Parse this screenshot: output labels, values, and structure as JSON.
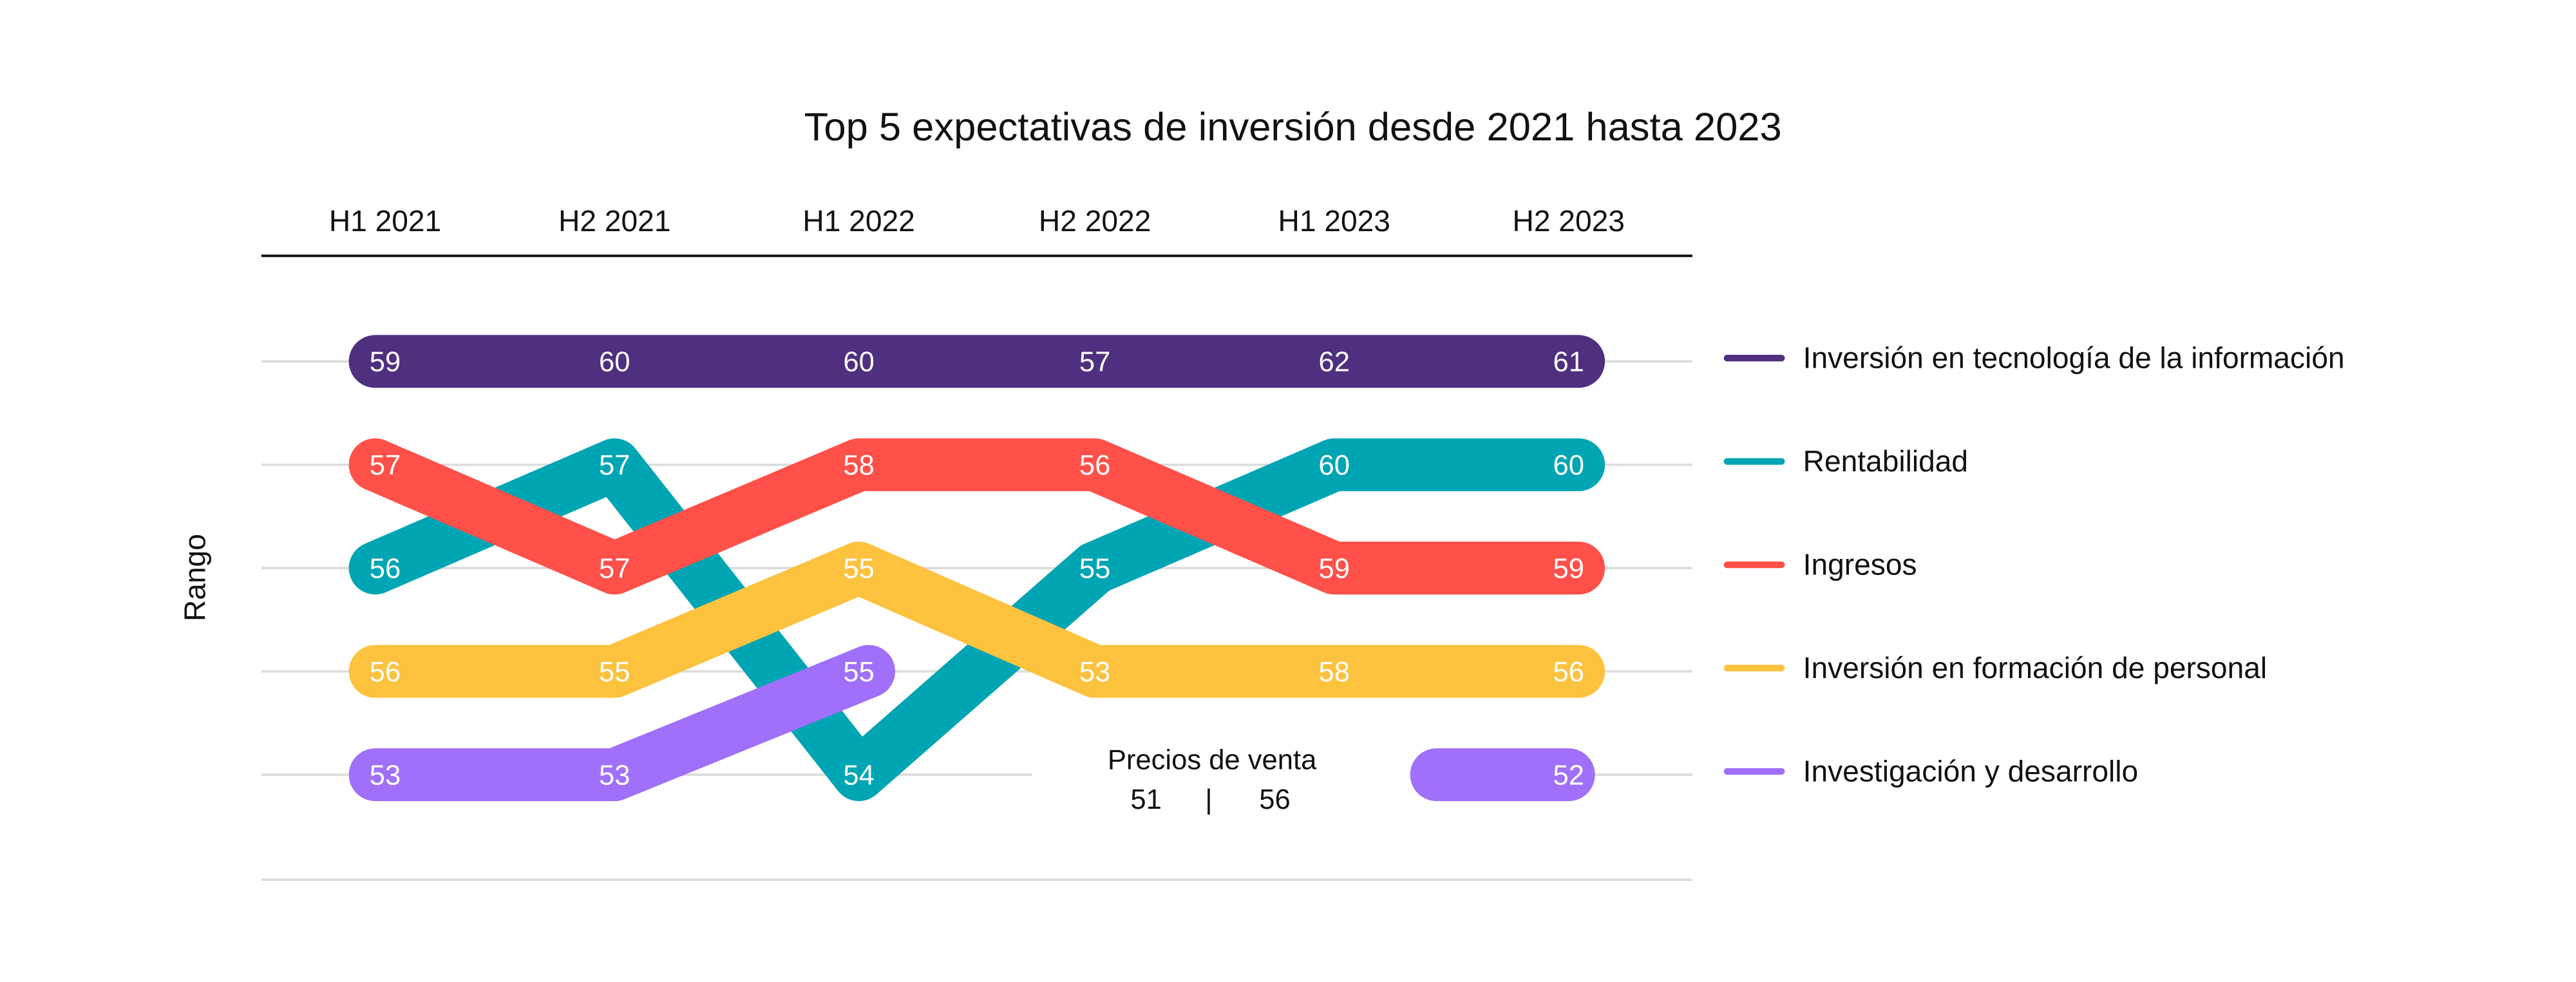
{
  "chart_data": {
    "type": "bump",
    "title": "Top 5 expectativas de inversión desde 2021 hasta 2023",
    "ylabel": "Rango",
    "categories": [
      "H1 2021",
      "H2 2021",
      "H1 2022",
      "H2 2022",
      "H1 2023",
      "H2 2023"
    ],
    "legend_position": "right",
    "grid": true,
    "series": [
      {
        "name": "Inversión en tecnología de la información",
        "color": "#4f2f7f",
        "ranks": [
          1,
          1,
          1,
          1,
          1,
          1
        ],
        "values": [
          59,
          60,
          60,
          57,
          62,
          61
        ]
      },
      {
        "name": "Rentabilidad",
        "color": "#00a5b4",
        "ranks": [
          3,
          2,
          5,
          3,
          2,
          2
        ],
        "values": [
          56,
          57,
          54,
          55,
          60,
          60
        ]
      },
      {
        "name": "Ingresos",
        "color": "#ff5049",
        "ranks": [
          2,
          3,
          2,
          2,
          3,
          3
        ],
        "values": [
          57,
          57,
          58,
          56,
          59,
          59
        ]
      },
      {
        "name": "Inversión en formación de personal",
        "color": "#fdc23e",
        "ranks": [
          4,
          4,
          3,
          4,
          4,
          4
        ],
        "values": [
          56,
          55,
          55,
          53,
          58,
          56
        ]
      },
      {
        "name": "Investigación y desarrollo",
        "color": "#a070fb",
        "ranks": [
          5,
          5,
          4,
          null,
          null,
          5
        ],
        "values": [
          53,
          53,
          55,
          null,
          null,
          52
        ]
      }
    ],
    "annotation": {
      "title": "Precios de venta",
      "left": "51",
      "separator": "|",
      "right": "56"
    }
  }
}
